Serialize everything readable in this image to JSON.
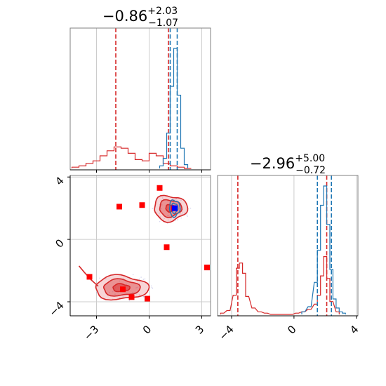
{
  "chart_data": {
    "type": "corner",
    "colors": {
      "red": "#d62728",
      "blue": "#1f77b4",
      "grid": "#cccccc",
      "axis": "#000000",
      "frame": "#808080"
    },
    "parameters": [
      {
        "title_main": "−0.86",
        "title_plus": "+2.03",
        "title_minus": "−1.07",
        "range": [
          -4.5,
          3.5
        ],
        "ticks": [
          -3,
          0,
          3
        ],
        "tick_labels": [
          "−3",
          "0",
          "3"
        ]
      },
      {
        "title_main": "−2.96",
        "title_plus": "+5.00",
        "title_minus": "−0.72",
        "range": [
          -4.9,
          4.1
        ],
        "ticks": [
          -4,
          0,
          4
        ],
        "tick_labels": [
          "−4",
          "0",
          "4"
        ]
      }
    ],
    "series": [
      {
        "color": "red",
        "hist_p1": {
          "x": [
            -4.2,
            -3.8,
            -3.4,
            -3.0,
            -2.6,
            -2.2,
            -1.8,
            -1.4,
            -1.0,
            -0.6,
            -0.2,
            0.2,
            0.6,
            1.0,
            1.4,
            1.8,
            2.2
          ],
          "y": [
            0.01,
            0.02,
            0.04,
            0.06,
            0.1,
            0.14,
            0.17,
            0.16,
            0.12,
            0.07,
            0.06,
            0.12,
            0.1,
            0.04,
            0.02,
            0.01,
            0.0
          ]
        },
        "vlines_p1": [
          -1.9,
          1.1
        ],
        "hist_p2": {
          "x": [
            -4.6,
            -4.2,
            -3.8,
            -3.6,
            -3.4,
            -3.2,
            -3.0,
            -2.6,
            -2.2,
            -1.8,
            -1.4,
            -1.0,
            -0.6,
            -0.2,
            0.2,
            0.6,
            1.0,
            1.4,
            1.6,
            1.8,
            2.0,
            2.2,
            2.4,
            2.8
          ],
          "y": [
            0.01,
            0.03,
            0.15,
            0.36,
            0.4,
            0.32,
            0.14,
            0.05,
            0.02,
            0.01,
            0.0,
            0.0,
            0.0,
            0.0,
            0.01,
            0.02,
            0.04,
            0.08,
            0.15,
            0.3,
            0.45,
            0.28,
            0.1,
            0.02
          ]
        },
        "vlines_p2": [
          -3.6,
          2.1
        ],
        "samples": [
          [
            0.6,
            3.3
          ],
          [
            -0.4,
            2.2
          ],
          [
            1.4,
            2.0
          ],
          [
            -1.5,
            -3.2
          ],
          [
            -1.0,
            -3.7
          ],
          [
            -0.1,
            -3.8
          ],
          [
            -3.4,
            -2.4
          ],
          [
            1.0,
            -0.5
          ],
          [
            3.3,
            -1.8
          ],
          [
            -1.7,
            2.1
          ]
        ],
        "blobs": [
          {
            "cx": 1.2,
            "cy": 2.0,
            "rx": 1.05,
            "ry": 0.9,
            "levels": [
              0.25,
              0.6,
              0.9
            ]
          },
          {
            "cx": -1.6,
            "cy": -3.1,
            "rx": 1.6,
            "ry": 0.8,
            "levels": [
              0.3,
              0.65,
              0.95
            ]
          }
        ],
        "tail_p1": [
          -4.0,
          -3.7,
          -3.3,
          -2.9
        ],
        "tail_p2": [
          -1.7,
          -2.1,
          -2.6,
          -3.0
        ]
      },
      {
        "color": "blue",
        "hist_p1": {
          "x": [
            0.7,
            0.9,
            1.1,
            1.3,
            1.5,
            1.7,
            1.9,
            2.1
          ],
          "y": [
            0.02,
            0.08,
            0.28,
            0.65,
            0.95,
            0.58,
            0.16,
            0.03
          ]
        },
        "vlines_p1": [
          1.2,
          1.6
        ],
        "hist_p2": {
          "x": [
            0.6,
            1.0,
            1.4,
            1.6,
            1.8,
            2.0,
            2.2,
            2.4,
            2.6,
            2.8,
            3.0,
            3.2
          ],
          "y": [
            0.02,
            0.06,
            0.25,
            0.5,
            0.85,
            1.0,
            0.7,
            0.35,
            0.12,
            0.05,
            0.02,
            0.01
          ]
        },
        "vlines_p2": [
          1.5,
          2.4
        ],
        "samples": [
          [
            1.45,
            2.0
          ]
        ],
        "blobs": [
          {
            "cx": 1.45,
            "cy": 2.0,
            "rx": 0.4,
            "ry": 0.7,
            "levels": [
              0.45,
              0.75
            ]
          }
        ]
      }
    ],
    "truth_lines": [
      1.1,
      2.0
    ]
  }
}
